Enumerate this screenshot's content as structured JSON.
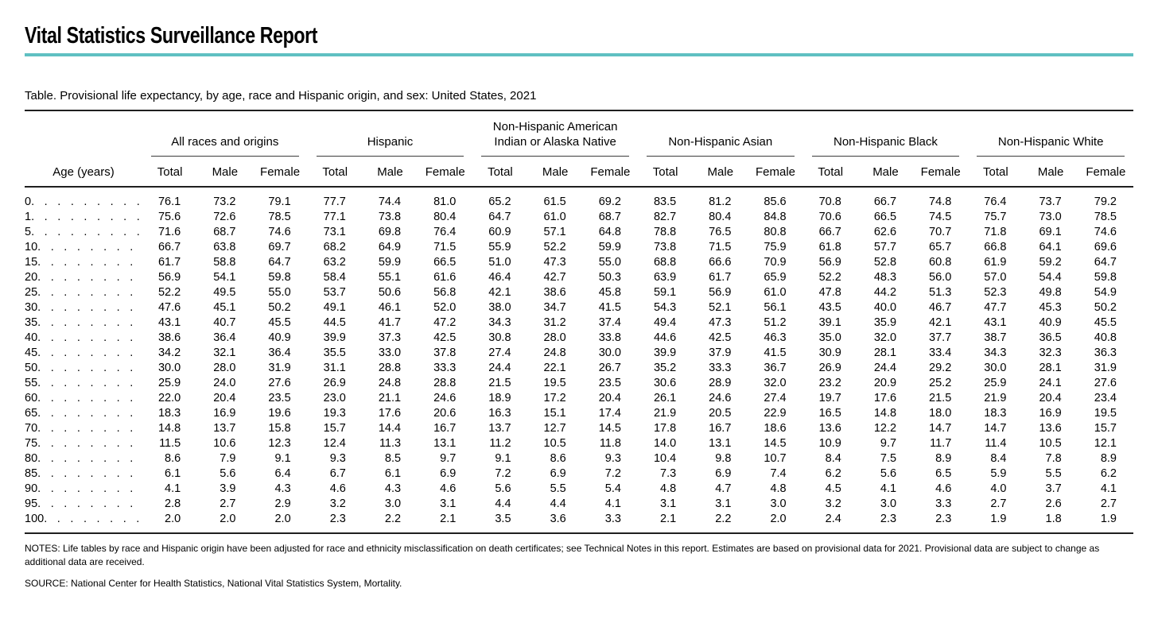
{
  "page": {
    "report_title": "Vital Statistics Surveillance Report",
    "accent_color": "#5fc0c2",
    "table_title": "Table. Provisional life expectancy, by age, race and Hispanic origin, and sex: United States, 2021",
    "notes": "NOTES: Life tables by race and Hispanic origin have been adjusted for race and ethnicity misclassification on death certificates; see Technical Notes in this report. Estimates are based on provisional data for 2021. Provisional data are subject to change as additional data are received.",
    "source": "SOURCE: National Center for Health Statistics, National Vital Statistics System, Mortality."
  },
  "table": {
    "age_header": "Age (years)",
    "sub_headers": [
      "Total",
      "Male",
      "Female"
    ],
    "groups": [
      {
        "label": "All races and origins"
      },
      {
        "label": "Hispanic"
      },
      {
        "label": "Non-Hispanic American Indian or Alaska Native"
      },
      {
        "label": "Non-Hispanic Asian"
      },
      {
        "label": "Non-Hispanic Black"
      },
      {
        "label": "Non-Hispanic White"
      }
    ],
    "rows": [
      {
        "age": "0",
        "values": [
          "76.1",
          "73.2",
          "79.1",
          "77.7",
          "74.4",
          "81.0",
          "65.2",
          "61.5",
          "69.2",
          "83.5",
          "81.2",
          "85.6",
          "70.8",
          "66.7",
          "74.8",
          "76.4",
          "73.7",
          "79.2"
        ]
      },
      {
        "age": "1",
        "values": [
          "75.6",
          "72.6",
          "78.5",
          "77.1",
          "73.8",
          "80.4",
          "64.7",
          "61.0",
          "68.7",
          "82.7",
          "80.4",
          "84.8",
          "70.6",
          "66.5",
          "74.5",
          "75.7",
          "73.0",
          "78.5"
        ]
      },
      {
        "age": "5",
        "values": [
          "71.6",
          "68.7",
          "74.6",
          "73.1",
          "69.8",
          "76.4",
          "60.9",
          "57.1",
          "64.8",
          "78.8",
          "76.5",
          "80.8",
          "66.7",
          "62.6",
          "70.7",
          "71.8",
          "69.1",
          "74.6"
        ]
      },
      {
        "age": "10",
        "values": [
          "66.7",
          "63.8",
          "69.7",
          "68.2",
          "64.9",
          "71.5",
          "55.9",
          "52.2",
          "59.9",
          "73.8",
          "71.5",
          "75.9",
          "61.8",
          "57.7",
          "65.7",
          "66.8",
          "64.1",
          "69.6"
        ]
      },
      {
        "age": "15",
        "values": [
          "61.7",
          "58.8",
          "64.7",
          "63.2",
          "59.9",
          "66.5",
          "51.0",
          "47.3",
          "55.0",
          "68.8",
          "66.6",
          "70.9",
          "56.9",
          "52.8",
          "60.8",
          "61.9",
          "59.2",
          "64.7"
        ]
      },
      {
        "age": "20",
        "values": [
          "56.9",
          "54.1",
          "59.8",
          "58.4",
          "55.1",
          "61.6",
          "46.4",
          "42.7",
          "50.3",
          "63.9",
          "61.7",
          "65.9",
          "52.2",
          "48.3",
          "56.0",
          "57.0",
          "54.4",
          "59.8"
        ]
      },
      {
        "age": "25",
        "values": [
          "52.2",
          "49.5",
          "55.0",
          "53.7",
          "50.6",
          "56.8",
          "42.1",
          "38.6",
          "45.8",
          "59.1",
          "56.9",
          "61.0",
          "47.8",
          "44.2",
          "51.3",
          "52.3",
          "49.8",
          "54.9"
        ]
      },
      {
        "age": "30",
        "values": [
          "47.6",
          "45.1",
          "50.2",
          "49.1",
          "46.1",
          "52.0",
          "38.0",
          "34.7",
          "41.5",
          "54.3",
          "52.1",
          "56.1",
          "43.5",
          "40.0",
          "46.7",
          "47.7",
          "45.3",
          "50.2"
        ]
      },
      {
        "age": "35",
        "values": [
          "43.1",
          "40.7",
          "45.5",
          "44.5",
          "41.7",
          "47.2",
          "34.3",
          "31.2",
          "37.4",
          "49.4",
          "47.3",
          "51.2",
          "39.1",
          "35.9",
          "42.1",
          "43.1",
          "40.9",
          "45.5"
        ]
      },
      {
        "age": "40",
        "values": [
          "38.6",
          "36.4",
          "40.9",
          "39.9",
          "37.3",
          "42.5",
          "30.8",
          "28.0",
          "33.8",
          "44.6",
          "42.5",
          "46.3",
          "35.0",
          "32.0",
          "37.7",
          "38.7",
          "36.5",
          "40.8"
        ]
      },
      {
        "age": "45",
        "values": [
          "34.2",
          "32.1",
          "36.4",
          "35.5",
          "33.0",
          "37.8",
          "27.4",
          "24.8",
          "30.0",
          "39.9",
          "37.9",
          "41.5",
          "30.9",
          "28.1",
          "33.4",
          "34.3",
          "32.3",
          "36.3"
        ]
      },
      {
        "age": "50",
        "values": [
          "30.0",
          "28.0",
          "31.9",
          "31.1",
          "28.8",
          "33.3",
          "24.4",
          "22.1",
          "26.7",
          "35.2",
          "33.3",
          "36.7",
          "26.9",
          "24.4",
          "29.2",
          "30.0",
          "28.1",
          "31.9"
        ]
      },
      {
        "age": "55",
        "values": [
          "25.9",
          "24.0",
          "27.6",
          "26.9",
          "24.8",
          "28.8",
          "21.5",
          "19.5",
          "23.5",
          "30.6",
          "28.9",
          "32.0",
          "23.2",
          "20.9",
          "25.2",
          "25.9",
          "24.1",
          "27.6"
        ]
      },
      {
        "age": "60",
        "values": [
          "22.0",
          "20.4",
          "23.5",
          "23.0",
          "21.1",
          "24.6",
          "18.9",
          "17.2",
          "20.4",
          "26.1",
          "24.6",
          "27.4",
          "19.7",
          "17.6",
          "21.5",
          "21.9",
          "20.4",
          "23.4"
        ]
      },
      {
        "age": "65",
        "values": [
          "18.3",
          "16.9",
          "19.6",
          "19.3",
          "17.6",
          "20.6",
          "16.3",
          "15.1",
          "17.4",
          "21.9",
          "20.5",
          "22.9",
          "16.5",
          "14.8",
          "18.0",
          "18.3",
          "16.9",
          "19.5"
        ]
      },
      {
        "age": "70",
        "values": [
          "14.8",
          "13.7",
          "15.8",
          "15.7",
          "14.4",
          "16.7",
          "13.7",
          "12.7",
          "14.5",
          "17.8",
          "16.7",
          "18.6",
          "13.6",
          "12.2",
          "14.7",
          "14.7",
          "13.6",
          "15.7"
        ]
      },
      {
        "age": "75",
        "values": [
          "11.5",
          "10.6",
          "12.3",
          "12.4",
          "11.3",
          "13.1",
          "11.2",
          "10.5",
          "11.8",
          "14.0",
          "13.1",
          "14.5",
          "10.9",
          "9.7",
          "11.7",
          "11.4",
          "10.5",
          "12.1"
        ]
      },
      {
        "age": "80",
        "values": [
          "8.6",
          "7.9",
          "9.1",
          "9.3",
          "8.5",
          "9.7",
          "9.1",
          "8.6",
          "9.3",
          "10.4",
          "9.8",
          "10.7",
          "8.4",
          "7.5",
          "8.9",
          "8.4",
          "7.8",
          "8.9"
        ]
      },
      {
        "age": "85",
        "values": [
          "6.1",
          "5.6",
          "6.4",
          "6.7",
          "6.1",
          "6.9",
          "7.2",
          "6.9",
          "7.2",
          "7.3",
          "6.9",
          "7.4",
          "6.2",
          "5.6",
          "6.5",
          "5.9",
          "5.5",
          "6.2"
        ]
      },
      {
        "age": "90",
        "values": [
          "4.1",
          "3.9",
          "4.3",
          "4.6",
          "4.3",
          "4.6",
          "5.6",
          "5.5",
          "5.4",
          "4.8",
          "4.7",
          "4.8",
          "4.5",
          "4.1",
          "4.6",
          "4.0",
          "3.7",
          "4.1"
        ]
      },
      {
        "age": "95",
        "values": [
          "2.8",
          "2.7",
          "2.9",
          "3.2",
          "3.0",
          "3.1",
          "4.4",
          "4.4",
          "4.1",
          "3.1",
          "3.1",
          "3.0",
          "3.2",
          "3.0",
          "3.3",
          "2.7",
          "2.6",
          "2.7"
        ]
      },
      {
        "age": "100",
        "values": [
          "2.0",
          "2.0",
          "2.0",
          "2.3",
          "2.2",
          "2.1",
          "3.5",
          "3.6",
          "3.3",
          "2.1",
          "2.2",
          "2.0",
          "2.4",
          "2.3",
          "2.3",
          "1.9",
          "1.8",
          "1.9"
        ]
      }
    ]
  }
}
